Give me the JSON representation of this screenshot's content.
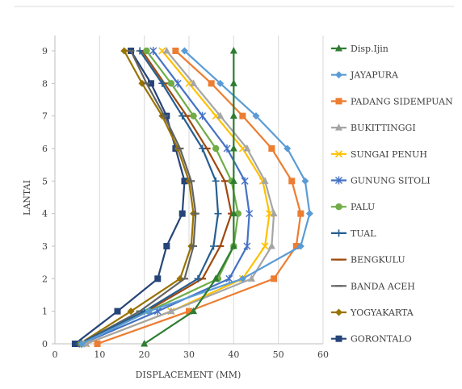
{
  "chart_data": {
    "type": "line",
    "xlabel": "DISPLACEMENT (MM)",
    "ylabel": "LANTAI",
    "xlim": [
      0,
      60
    ],
    "ylim": [
      0,
      9
    ],
    "x_ticks": [
      "0",
      "10",
      "20",
      "30",
      "40",
      "50",
      "60"
    ],
    "y_ticks": [
      "0",
      "1",
      "2",
      "3",
      "4",
      "5",
      "6",
      "7",
      "8",
      "9"
    ],
    "grid": "vertical",
    "legend_position": "right",
    "series": [
      {
        "name": "Disp.Ijin",
        "color": "#2e7d32",
        "marker": "triangle",
        "floors": [
          0,
          1,
          2,
          3,
          4,
          5,
          6,
          7,
          8,
          9
        ],
        "disp": [
          20,
          31,
          36,
          40,
          40,
          40,
          40,
          40,
          40,
          40
        ]
      },
      {
        "name": "JAYAPURA",
        "color": "#5b9bd5",
        "marker": "diamond",
        "floors": [
          0,
          1,
          2,
          3,
          4,
          5,
          6,
          7,
          8,
          9
        ],
        "disp": [
          6,
          21,
          42,
          55,
          57,
          56,
          52,
          45,
          37,
          29
        ]
      },
      {
        "name": "PADANG SIDEMPUAN",
        "color": "#ed7d31",
        "marker": "square",
        "floors": [
          0,
          1,
          2,
          3,
          4,
          5,
          6,
          7,
          8,
          9
        ],
        "disp": [
          9.5,
          30,
          49,
          54,
          55,
          53,
          48.5,
          42,
          35,
          27
        ]
      },
      {
        "name": "BUKITTINGGI",
        "color": "#a5a5a5",
        "marker": "triangle",
        "floors": [
          0,
          1,
          2,
          3,
          4,
          5,
          6,
          7,
          8,
          9
        ],
        "disp": [
          7,
          26,
          44,
          48.5,
          49,
          47,
          43,
          37,
          31,
          25
        ]
      },
      {
        "name": "SUNGAI PENUH",
        "color": "#ffc000",
        "marker": "x",
        "floors": [
          0,
          1,
          2,
          3,
          4,
          5,
          6,
          7,
          8,
          9
        ],
        "disp": [
          7,
          26,
          42,
          47,
          48,
          46.5,
          42,
          36,
          30,
          24
        ]
      },
      {
        "name": "GUNUNG SITOLI",
        "color": "#4472c4",
        "marker": "star",
        "floors": [
          0,
          1,
          2,
          3,
          4,
          5,
          6,
          7,
          8,
          9
        ],
        "disp": [
          6,
          23,
          39,
          43,
          43.5,
          42.5,
          38.5,
          33,
          27.5,
          22
        ]
      },
      {
        "name": "PALU",
        "color": "#70ad47",
        "marker": "circle",
        "floors": [
          0,
          1,
          2,
          3,
          4,
          5,
          6,
          7,
          8,
          9
        ],
        "disp": [
          6,
          21,
          36.5,
          40,
          41,
          39.5,
          36,
          31,
          26,
          20.5
        ]
      },
      {
        "name": "TUAL",
        "color": "#255e91",
        "marker": "plus",
        "floors": [
          0,
          1,
          2,
          3,
          4,
          5,
          6,
          7,
          8,
          9
        ],
        "disp": [
          5.5,
          20,
          32,
          35.5,
          36.5,
          36,
          33,
          28.5,
          24,
          19
        ]
      },
      {
        "name": "BENGKULU",
        "color": "#9e480e",
        "marker": "dash",
        "floors": [
          0,
          1,
          2,
          3,
          4,
          5,
          6,
          7,
          8,
          9
        ],
        "disp": [
          6,
          20.5,
          33,
          37,
          39.5,
          38,
          34,
          29.5,
          24.5,
          19.5
        ]
      },
      {
        "name": "BANDA ACEH",
        "color": "#636363",
        "marker": "dash",
        "floors": [
          0,
          1,
          2,
          3,
          4,
          5,
          6,
          7,
          8,
          9
        ],
        "disp": [
          5.5,
          19,
          29,
          31,
          31.5,
          30.5,
          28,
          24.5,
          20.5,
          17
        ]
      },
      {
        "name": "YOGYAKARTA",
        "color": "#997300",
        "marker": "diamond",
        "floors": [
          0,
          1,
          2,
          3,
          4,
          5,
          6,
          7,
          8,
          9
        ],
        "disp": [
          5.5,
          17,
          28,
          30.5,
          31,
          30,
          27.5,
          24,
          19.5,
          15.5
        ]
      },
      {
        "name": "GORONTALO",
        "color": "#264478",
        "marker": "square",
        "floors": [
          0,
          1,
          2,
          3,
          4,
          5,
          6,
          7,
          8,
          9
        ],
        "disp": [
          4.5,
          14,
          23,
          25,
          28.5,
          29,
          27,
          25,
          21.5,
          17
        ]
      }
    ]
  }
}
